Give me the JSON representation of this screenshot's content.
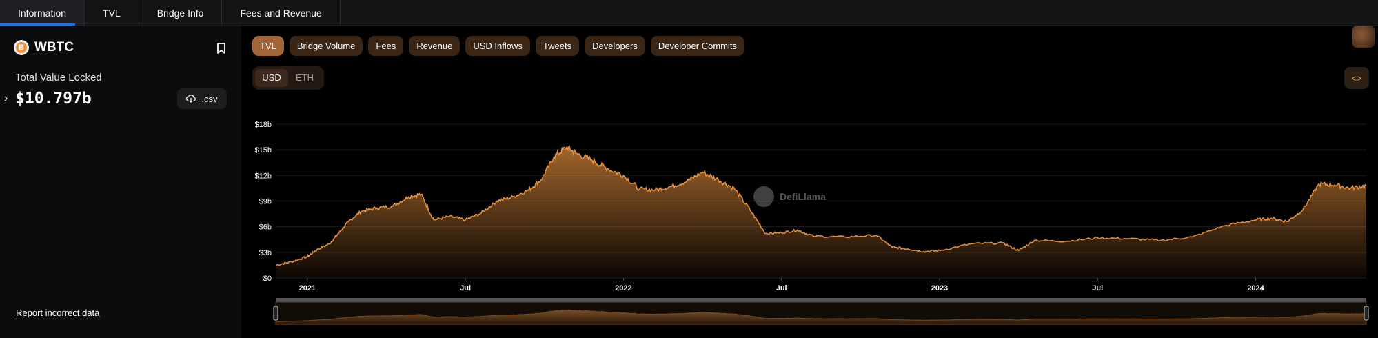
{
  "tabs": [
    {
      "label": "Information"
    },
    {
      "label": "TVL"
    },
    {
      "label": "Bridge Info"
    },
    {
      "label": "Fees and Revenue"
    }
  ],
  "protocol": {
    "name": "WBTC",
    "logo_letter": "B"
  },
  "tvl": {
    "label": "Total Value Locked",
    "value": "$10.797b"
  },
  "csv_label": ".csv",
  "report_label": "Report incorrect data",
  "metrics": [
    {
      "label": "TVL",
      "active": true
    },
    {
      "label": "Bridge Volume"
    },
    {
      "label": "Fees"
    },
    {
      "label": "Revenue"
    },
    {
      "label": "USD Inflows"
    },
    {
      "label": "Tweets"
    },
    {
      "label": "Developers"
    },
    {
      "label": "Developer Commits"
    }
  ],
  "denominations": [
    {
      "label": "USD",
      "active": true
    },
    {
      "label": "ETH"
    }
  ],
  "embed_label": "<>",
  "watermark": "DefiLlama",
  "colors": {
    "accent": "#e8913f",
    "active_pill": "#a2653a",
    "pill": "#3b2515"
  },
  "chart_data": {
    "type": "area",
    "title": "",
    "xlabel": "",
    "ylabel": "",
    "ylim": [
      0,
      18
    ],
    "y_ticks": [
      {
        "v": 0,
        "label": "$0"
      },
      {
        "v": 3,
        "label": "$3b"
      },
      {
        "v": 6,
        "label": "$6b"
      },
      {
        "v": 9,
        "label": "$9b"
      },
      {
        "v": 12,
        "label": "$12b"
      },
      {
        "v": 15,
        "label": "$15b"
      },
      {
        "v": 18,
        "label": "$18b"
      }
    ],
    "x_ticks": [
      {
        "t": 2021.0,
        "label": "2021"
      },
      {
        "t": 2021.5,
        "label": "Jul"
      },
      {
        "t": 2022.0,
        "label": "2022"
      },
      {
        "t": 2022.5,
        "label": "Jul"
      },
      {
        "t": 2023.0,
        "label": "2023"
      },
      {
        "t": 2023.5,
        "label": "Jul"
      },
      {
        "t": 2024.0,
        "label": "2024"
      }
    ],
    "xlim": [
      2020.9,
      2024.35
    ],
    "series": [
      {
        "points": [
          [
            2020.9,
            1.5
          ],
          [
            2020.95,
            1.9
          ],
          [
            2021.0,
            2.5
          ],
          [
            2021.03,
            3.3
          ],
          [
            2021.07,
            4.0
          ],
          [
            2021.1,
            5.3
          ],
          [
            2021.13,
            6.6
          ],
          [
            2021.17,
            7.8
          ],
          [
            2021.22,
            8.2
          ],
          [
            2021.27,
            8.4
          ],
          [
            2021.32,
            9.5
          ],
          [
            2021.36,
            9.8
          ],
          [
            2021.4,
            6.8
          ],
          [
            2021.45,
            7.2
          ],
          [
            2021.5,
            6.8
          ],
          [
            2021.55,
            7.6
          ],
          [
            2021.6,
            9.0
          ],
          [
            2021.65,
            9.5
          ],
          [
            2021.7,
            10.3
          ],
          [
            2021.74,
            11.5
          ],
          [
            2021.78,
            14.2
          ],
          [
            2021.82,
            15.3
          ],
          [
            2021.85,
            14.6
          ],
          [
            2021.9,
            13.8
          ],
          [
            2021.95,
            12.8
          ],
          [
            2022.0,
            12.0
          ],
          [
            2022.05,
            10.4
          ],
          [
            2022.1,
            10.3
          ],
          [
            2022.15,
            10.7
          ],
          [
            2022.2,
            11.3
          ],
          [
            2022.25,
            12.4
          ],
          [
            2022.3,
            11.5
          ],
          [
            2022.35,
            10.5
          ],
          [
            2022.4,
            8.0
          ],
          [
            2022.45,
            5.2
          ],
          [
            2022.5,
            5.3
          ],
          [
            2022.55,
            5.6
          ],
          [
            2022.6,
            4.9
          ],
          [
            2022.7,
            4.8
          ],
          [
            2022.8,
            5.0
          ],
          [
            2022.85,
            3.6
          ],
          [
            2022.9,
            3.4
          ],
          [
            2022.95,
            3.1
          ],
          [
            2023.0,
            3.2
          ],
          [
            2023.1,
            4.0
          ],
          [
            2023.2,
            4.1
          ],
          [
            2023.25,
            3.2
          ],
          [
            2023.3,
            4.4
          ],
          [
            2023.4,
            4.3
          ],
          [
            2023.5,
            4.7
          ],
          [
            2023.6,
            4.6
          ],
          [
            2023.7,
            4.4
          ],
          [
            2023.8,
            4.8
          ],
          [
            2023.9,
            6.1
          ],
          [
            2024.0,
            6.8
          ],
          [
            2024.05,
            7.0
          ],
          [
            2024.1,
            6.6
          ],
          [
            2024.15,
            8.0
          ],
          [
            2024.2,
            11.0
          ],
          [
            2024.25,
            10.9
          ],
          [
            2024.3,
            10.5
          ],
          [
            2024.35,
            10.8
          ]
        ]
      }
    ]
  }
}
